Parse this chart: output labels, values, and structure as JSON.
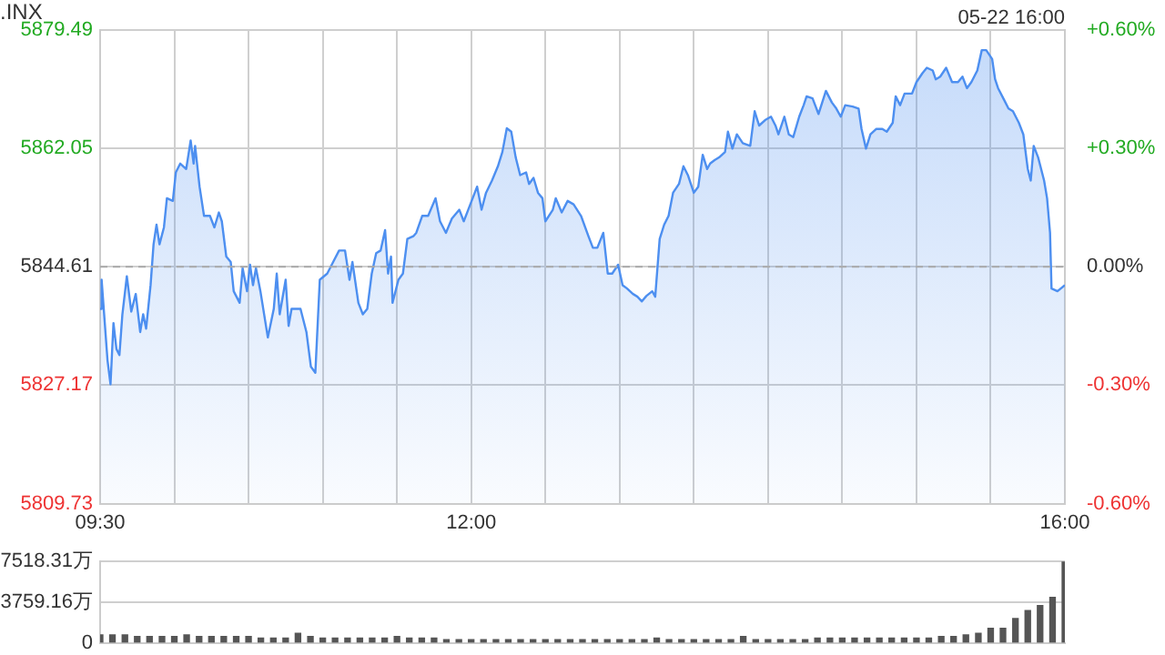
{
  "chart_data": [
    {
      "type": "area",
      "title": ".INX",
      "annotations": [
        "05-22 16:00"
      ],
      "marker": "none",
      "grid": true,
      "legend": false,
      "xlim": [
        9.5,
        16
      ],
      "xticks": [
        {
          "value": 9.5,
          "label": "09:30"
        },
        {
          "value": 10,
          "label": null
        },
        {
          "value": 10.5,
          "label": null
        },
        {
          "value": 11,
          "label": null
        },
        {
          "value": 11.5,
          "label": null
        },
        {
          "value": 12,
          "label": "12:00"
        },
        {
          "value": 12.5,
          "label": null
        },
        {
          "value": 13,
          "label": null
        },
        {
          "value": 13.5,
          "label": null
        },
        {
          "value": 14,
          "label": null
        },
        {
          "value": 14.5,
          "label": null
        },
        {
          "value": 15,
          "label": null
        },
        {
          "value": 15.5,
          "label": null
        },
        {
          "value": 16,
          "label": "16:00"
        }
      ],
      "ylim": [
        5809.73,
        5879.49
      ],
      "yticks": [
        5809.73,
        5827.17,
        5844.61,
        5862.05,
        5879.49
      ],
      "y2lim": [
        -0.6,
        0.6
      ],
      "y2ticks": [
        {
          "value": -0.6,
          "label": "-0.60%"
        },
        {
          "value": -0.3,
          "label": "-0.30%"
        },
        {
          "value": 0,
          "label": "0.00%"
        },
        {
          "value": 0.3,
          "label": "+0.30%"
        },
        {
          "value": 0.6,
          "label": "+0.60%"
        }
      ],
      "ref_lines": [
        {
          "axis": "y",
          "value": 5844.61,
          "color": "#aaaaaa",
          "line_style": "dashed"
        }
      ],
      "series": [
        {
          "color": "#4d8ff0",
          "x": [
            9.5,
            9.51,
            9.55,
            9.57,
            9.59,
            9.61,
            9.63,
            9.65,
            9.68,
            9.71,
            9.74,
            9.77,
            9.79,
            9.81,
            9.84,
            9.86,
            9.88,
            9.9,
            9.93,
            9.95,
            9.99,
            10.01,
            10.04,
            10.08,
            10.11,
            10.13,
            10.14,
            10.17,
            10.2,
            10.24,
            10.27,
            10.3,
            10.32,
            10.35,
            10.38,
            10.4,
            10.44,
            10.46,
            10.49,
            10.51,
            10.53,
            10.55,
            10.58,
            10.63,
            10.67,
            10.69,
            10.71,
            10.75,
            10.77,
            10.79,
            10.85,
            10.89,
            10.92,
            10.95,
            10.98,
            11.03,
            11.07,
            11.11,
            11.15,
            11.18,
            11.2,
            11.24,
            11.27,
            11.3,
            11.33,
            11.36,
            11.39,
            11.42,
            11.44,
            11.46,
            11.47,
            11.51,
            11.54,
            11.57,
            11.61,
            11.63,
            11.67,
            11.71,
            11.76,
            11.79,
            11.83,
            11.87,
            11.92,
            11.95,
            11.98,
            12.01,
            12.04,
            12.07,
            12.1,
            12.14,
            12.18,
            12.21,
            12.24,
            12.27,
            12.3,
            12.33,
            12.37,
            12.39,
            12.42,
            12.45,
            12.48,
            12.5,
            12.55,
            12.57,
            12.61,
            12.65,
            12.69,
            12.74,
            12.79,
            12.82,
            12.85,
            12.89,
            12.92,
            12.95,
            12.99,
            13.02,
            13.05,
            13.09,
            13.12,
            13.15,
            13.18,
            13.22,
            13.24,
            13.27,
            13.3,
            13.33,
            13.36,
            13.4,
            13.43,
            13.46,
            13.5,
            13.53,
            13.56,
            13.59,
            13.61,
            13.64,
            13.67,
            13.71,
            13.73,
            13.76,
            13.79,
            13.83,
            13.88,
            13.91,
            13.94,
            13.98,
            14.02,
            14.05,
            14.07,
            14.11,
            14.14,
            14.17,
            14.21,
            14.24,
            14.26,
            14.3,
            14.34,
            14.39,
            14.43,
            14.46,
            14.49,
            14.52,
            14.57,
            14.61,
            14.63,
            14.66,
            14.69,
            14.73,
            14.77,
            14.8,
            14.84,
            14.86,
            14.89,
            14.92,
            14.97,
            15,
            15.04,
            15.07,
            15.11,
            15.13,
            15.16,
            15.2,
            15.24,
            15.28,
            15.31,
            15.34,
            15.37,
            15.41,
            15.44,
            15.47,
            15.51,
            15.53,
            15.55,
            15.59,
            15.62,
            15.65,
            15.69,
            15.72,
            15.75,
            15.77,
            15.79,
            15.82,
            15.86,
            15.88,
            15.9,
            15.91,
            15.95,
            16
          ],
          "values": [
            5838.4,
            5842.7,
            5830.8,
            5827.3,
            5836.3,
            5832.5,
            5831.6,
            5837.6,
            5843.2,
            5838.0,
            5840.6,
            5835.0,
            5837.6,
            5835.5,
            5841.9,
            5847.9,
            5850.8,
            5847.9,
            5850.4,
            5854.7,
            5854.3,
            5858.5,
            5859.8,
            5859.0,
            5863.2,
            5859.8,
            5862.4,
            5856.4,
            5852.1,
            5852.1,
            5850.4,
            5852.6,
            5851.3,
            5846.1,
            5845.3,
            5841.0,
            5839.3,
            5844.4,
            5841.0,
            5844.9,
            5841.9,
            5844.4,
            5841.0,
            5834.2,
            5838.4,
            5843.6,
            5837.6,
            5842.7,
            5835.9,
            5838.4,
            5838.4,
            5835.0,
            5829.9,
            5829.0,
            5842.7,
            5843.6,
            5845.3,
            5847.0,
            5847.0,
            5842.7,
            5845.3,
            5839.3,
            5837.6,
            5838.4,
            5843.6,
            5846.6,
            5847.0,
            5850.0,
            5843.6,
            5846.1,
            5839.3,
            5842.7,
            5843.6,
            5848.7,
            5849.1,
            5849.6,
            5852.1,
            5852.1,
            5854.7,
            5851.3,
            5849.6,
            5851.7,
            5853.0,
            5851.3,
            5853.0,
            5854.7,
            5856.4,
            5853.0,
            5855.5,
            5857.3,
            5859.4,
            5861.5,
            5865.0,
            5864.5,
            5860.7,
            5858.1,
            5858.5,
            5856.8,
            5857.7,
            5855.5,
            5854.7,
            5851.3,
            5853.0,
            5854.7,
            5852.6,
            5854.3,
            5853.8,
            5852.1,
            5849.1,
            5847.4,
            5847.4,
            5849.6,
            5843.6,
            5843.6,
            5844.9,
            5841.9,
            5841.4,
            5840.6,
            5840.2,
            5839.5,
            5840.3,
            5841.0,
            5840.2,
            5848.7,
            5850.8,
            5852.1,
            5855.5,
            5856.8,
            5859.4,
            5858.1,
            5855.5,
            5856.4,
            5861.1,
            5859.0,
            5859.8,
            5860.3,
            5860.7,
            5861.5,
            5864.5,
            5862.0,
            5864.1,
            5862.8,
            5862.4,
            5867.5,
            5865.4,
            5866.2,
            5866.7,
            5865.4,
            5864.1,
            5866.7,
            5864.1,
            5863.7,
            5866.7,
            5868.4,
            5869.7,
            5869.4,
            5867.1,
            5870.5,
            5868.8,
            5867.9,
            5866.7,
            5868.4,
            5868.2,
            5867.9,
            5864.9,
            5862.0,
            5864.1,
            5864.9,
            5864.9,
            5864.5,
            5865.8,
            5869.7,
            5868.4,
            5870.1,
            5870.1,
            5871.8,
            5873.1,
            5873.9,
            5873.5,
            5872.2,
            5872.6,
            5873.9,
            5871.8,
            5871.8,
            5872.6,
            5870.9,
            5871.8,
            5873.5,
            5876.5,
            5876.5,
            5875.2,
            5872.2,
            5870.9,
            5869.2,
            5867.9,
            5867.5,
            5865.8,
            5864.1,
            5859.0,
            5857.3,
            5862.4,
            5860.7,
            5857.3,
            5854.7,
            5849.6,
            5841.4,
            5841.0,
            5841.9
          ]
        }
      ]
    },
    {
      "type": "bar",
      "grid": "y",
      "legend": false,
      "tick_labels": "y",
      "xlim": [
        9.5,
        16
      ],
      "ylim": [
        0,
        7518.31
      ],
      "yticks": [
        0,
        {
          "value": 3759.16,
          "label": "3759.16万"
        },
        {
          "value": 7518.31,
          "label": "7518.31万"
        }
      ],
      "x": [
        9.5,
        9.583,
        9.667,
        9.75,
        9.833,
        9.917,
        10,
        10.083,
        10.167,
        10.25,
        10.333,
        10.417,
        10.5,
        10.583,
        10.667,
        10.75,
        10.833,
        10.917,
        11,
        11.083,
        11.167,
        11.25,
        11.333,
        11.417,
        11.5,
        11.583,
        11.667,
        11.75,
        11.833,
        11.917,
        12,
        12.083,
        12.167,
        12.25,
        12.333,
        12.417,
        12.5,
        12.583,
        12.667,
        12.75,
        12.833,
        12.917,
        13,
        13.083,
        13.167,
        13.25,
        13.333,
        13.417,
        13.5,
        13.583,
        13.667,
        13.75,
        13.833,
        13.917,
        14,
        14.083,
        14.167,
        14.25,
        14.333,
        14.417,
        14.5,
        14.583,
        14.667,
        14.75,
        14.833,
        14.917,
        15,
        15.083,
        15.167,
        15.25,
        15.333,
        15.417,
        15.5,
        15.583,
        15.667,
        15.75,
        15.833,
        15.917,
        16
      ],
      "series": [
        {
          "color": "#555555",
          "values": [
            750,
            750,
            750,
            600,
            600,
            600,
            600,
            750,
            600,
            600,
            600,
            600,
            600,
            450,
            450,
            450,
            900,
            600,
            450,
            450,
            450,
            450,
            450,
            450,
            600,
            450,
            450,
            450,
            300,
            300,
            300,
            300,
            300,
            300,
            300,
            300,
            300,
            300,
            300,
            300,
            300,
            300,
            300,
            300,
            300,
            450,
            300,
            300,
            300,
            300,
            300,
            300,
            600,
            300,
            300,
            300,
            300,
            300,
            450,
            450,
            450,
            450,
            450,
            450,
            450,
            450,
            450,
            450,
            600,
            600,
            750,
            900,
            1350,
            1350,
            2250,
            3000,
            3450,
            4200,
            7518.31
          ]
        }
      ]
    }
  ]
}
